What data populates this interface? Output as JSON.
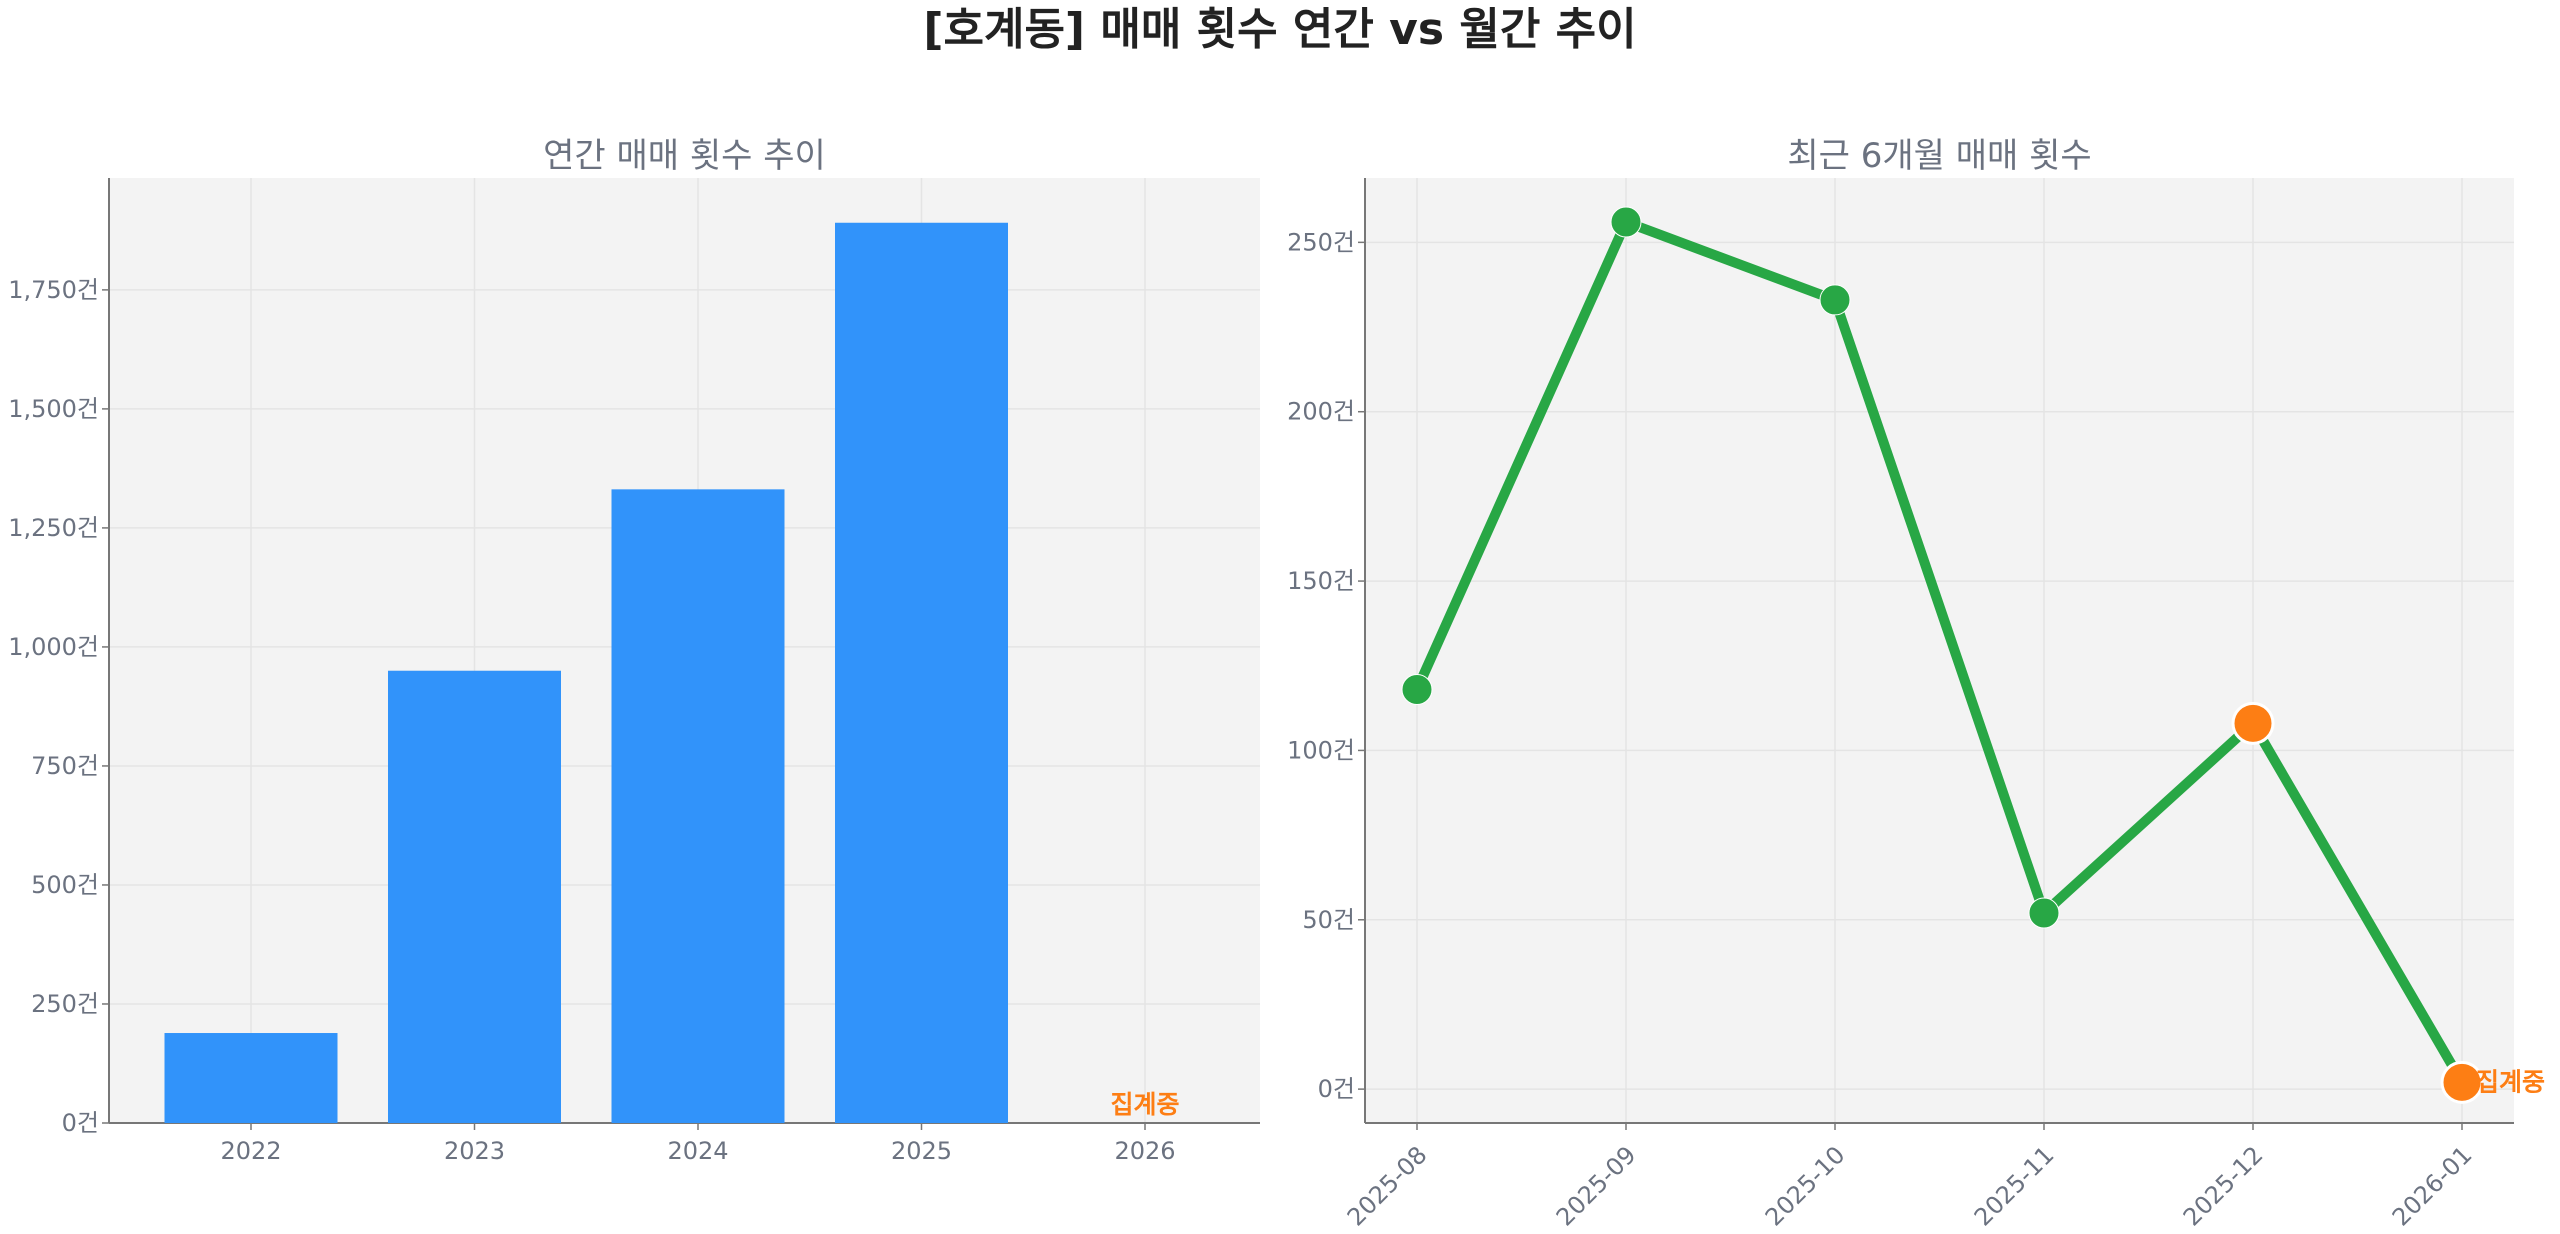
{
  "title": "[호계동] 매매 횟수 연간 vs 월간 추이",
  "colors": {
    "bar": "#3193fa",
    "line": "#28a745",
    "incomplete": "#fd7e14",
    "axes_bg": "#f3f3f3",
    "grid": "#e4e4e4",
    "text": "#6b7280"
  },
  "chart_data": [
    {
      "type": "bar",
      "title": "연간 매매 횟수 추이",
      "categories": [
        "2022",
        "2023",
        "2024",
        "2025",
        "2026"
      ],
      "values": [
        189,
        950,
        1331,
        1891,
        0
      ],
      "ylim": [
        0,
        1985
      ],
      "yticks": [
        0,
        250,
        500,
        750,
        1000,
        1250,
        1500,
        1750
      ],
      "ytick_labels": [
        "0건",
        "250건",
        "500건",
        "750건",
        "1,000건",
        "1,250건",
        "1,500건",
        "1,750건"
      ],
      "annotation": {
        "category": "2026",
        "text": "집계중"
      },
      "grid": true
    },
    {
      "type": "line",
      "title": "최근 6개월 매매 횟수",
      "categories": [
        "2025-08",
        "2025-09",
        "2025-10",
        "2025-11",
        "2025-12",
        "2026-01"
      ],
      "values": [
        118,
        256,
        233,
        52,
        108,
        2
      ],
      "incomplete": [
        false,
        false,
        false,
        false,
        true,
        true
      ],
      "ylim": [
        -10,
        269
      ],
      "yticks": [
        0,
        50,
        100,
        150,
        200,
        250
      ],
      "ytick_labels": [
        "0건",
        "50건",
        "100건",
        "150건",
        "200건",
        "250건"
      ],
      "annotation": {
        "category": "2026-01",
        "text": "집계중"
      },
      "xtick_rotation": 45,
      "grid": true
    }
  ]
}
